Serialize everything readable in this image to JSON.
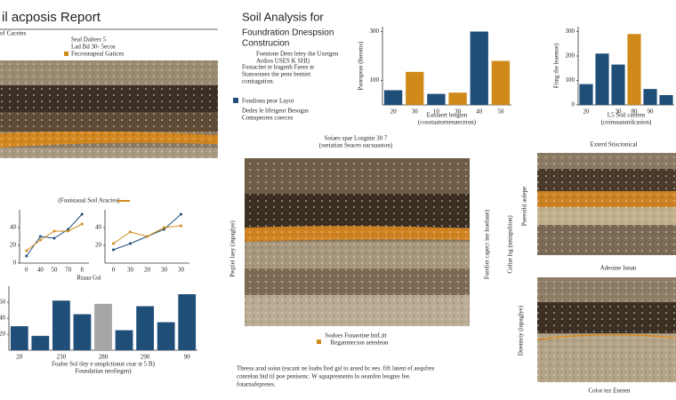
{
  "header": {
    "title": "il acposis Report",
    "left_note": "of Cacetes",
    "lines": [
      "Seal Dalters 5",
      "Lad Bd 30- 5ecos"
    ],
    "legend": "Fecroseapeal Gatices"
  },
  "center": {
    "title_lines": [
      "Soil Analysis for",
      "Foundration Dnespsion",
      "Construcion"
    ],
    "para1": [
      "Foestone Dees letey the Uxetgen",
      "Ardios USES K SHI)"
    ],
    "para2": [
      "Fostacitet te lragenh Faees te",
      "Stanoouses the pens bentiet",
      "conitagation."
    ],
    "legend": "Fondions peor Layot",
    "para3": [
      "Dedes le lifeigeor Besogas",
      "Comspeores coerces"
    ]
  },
  "image_main": {
    "title": "Soiaes spar Lozgnin 30 7",
    "subtitle": "(sseiatian Seaces oacuaaston)",
    "caption1": "Sodoes Fonaotine btrLitt",
    "caption2": "Reganmecion aetedeon",
    "left_label": "Peqtiei laey (inpaglye)",
    "right_labels": [
      "Foreliet capect ine lsaelaue)",
      "Coltar lsg (uniupsltion)"
    ]
  },
  "image_right": [
    {
      "title": "Exterd Stisctonical",
      "side": "Poeeoild aolepe"
    },
    {
      "title": "Adeoine Isnan",
      "side": "Doenteiy (inpaglye)"
    }
  ],
  "footer_right": "Color tez Eneien",
  "footer_center": [
    "Theess arad soisn (escant ne loabs fied gsl to arsed bc ees. fift latent ef aeqsfres",
    "conrelon bid til poe penisenc. W sqsapresnents lo oeanfen leogtes fee.",
    "fotarnafepretes."
  ],
  "charts": [
    {
      "type": "bar",
      "ylabel": "Paorspeas (fneoms)",
      "caption": [
        "Eaxtaert leogten",
        "(cosotaatornenaeceion)"
      ],
      "categories": [
        "20",
        "30",
        "10",
        "30",
        "40",
        "50"
      ],
      "values": [
        60,
        135,
        45,
        50,
        300,
        180
      ],
      "colors": [
        "#1f4e79",
        "#d08a1a",
        "#1f4e79",
        "#d08a1a",
        "#1f4e79",
        "#d08a1a"
      ],
      "ylim": [
        0,
        320
      ],
      "yticks": [
        100,
        300
      ]
    },
    {
      "type": "bar",
      "ylabel": "Fitng the leaenoe)",
      "caption": [
        "L5 Soil caetten",
        "(coimaaaunilcasion)"
      ],
      "categories": [
        "20",
        null,
        "30",
        "80",
        "90",
        null
      ],
      "values": [
        85,
        210,
        165,
        290,
        65,
        40
      ],
      "colors": [
        "#1f4e79",
        "#1f4e79",
        "#1f4e79",
        "#d08a1a",
        "#1f4e79",
        "#1f4e79"
      ],
      "ylim": [
        0,
        320
      ],
      "yticks": [
        0,
        100,
        200,
        300
      ]
    },
    {
      "type": "bar",
      "caption": [
        "Foalse Sol tley e unsplctionst cear st 5 B)",
        "Foundatian neofiegen)"
      ],
      "categories": [
        "20",
        null,
        "230",
        null,
        "280",
        null,
        "290",
        null,
        "90"
      ],
      "values": [
        30,
        18,
        62,
        45,
        58,
        25,
        55,
        35,
        70
      ],
      "colors": [
        "#1f4e79",
        "#1f4e79",
        "#1f4e79",
        "#1f4e79",
        "#a6a6a6",
        "#1f4e79",
        "#1f4e79",
        "#1f4e79",
        "#1f4e79"
      ],
      "ylim": [
        0,
        80
      ],
      "yticks": [
        20,
        40,
        60
      ]
    },
    {
      "type": "line",
      "caption": [
        "Rtaaa Gsl"
      ],
      "categories": [
        "0",
        "40",
        "50",
        "70",
        "8"
      ],
      "series": [
        {
          "color": "#1f4e79",
          "values": [
            8,
            30,
            28,
            38,
            55
          ]
        },
        {
          "name": "(Foaisiaoal Soil Aracies)",
          "color": "#d08a1a",
          "values": [
            14,
            26,
            36,
            36,
            44
          ]
        }
      ],
      "ylim": [
        0,
        60
      ],
      "yticks": [
        0,
        20,
        40
      ]
    },
    {
      "type": "line",
      "categories": [
        "0",
        "30",
        "20",
        "30",
        "30"
      ],
      "series": [
        {
          "color": "#1f4e79",
          "values": [
            15,
            22,
            30,
            38,
            55
          ]
        },
        {
          "color": "#d08a1a",
          "values": [
            22,
            35,
            30,
            40,
            42
          ]
        }
      ],
      "ylim": [
        0,
        60
      ],
      "yticks": [
        20,
        40
      ]
    }
  ]
}
